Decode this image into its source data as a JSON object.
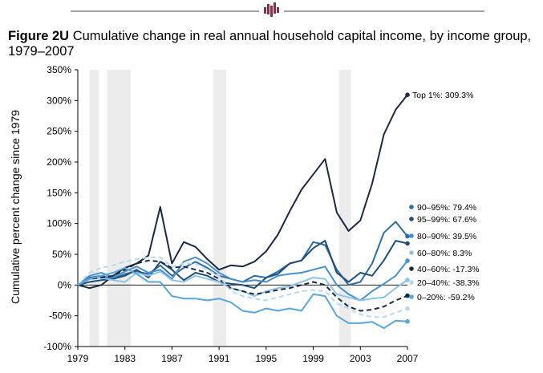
{
  "title": {
    "figure_label": "Figure 2U",
    "text": "Cumulative change in real annual  household capital income, by income group, 1979–2007"
  },
  "colors": {
    "top1": "#1b2a41",
    "p95_99": "#1f4e79",
    "p90_95": "#2e6da4",
    "p80_90": "#4a90c8",
    "p60_80": "#8ec3e8",
    "p40_60": "#1b2a41",
    "p20_40": "#b8d9f0",
    "p0_20": "#5aa6dc",
    "recession": "#ececec",
    "logo": "#8a2f4a"
  },
  "chart_data": {
    "type": "line",
    "ylabel": "Cumulative percent change since 1979",
    "xlabel": "",
    "xlim": [
      1979,
      2007
    ],
    "ylim": [
      -100,
      350
    ],
    "x_ticks": [
      "1979",
      "1983",
      "1987",
      "1991",
      "1995",
      "1999",
      "2003",
      "2007"
    ],
    "y_ticks": [
      "-100%",
      "-50%",
      "0%",
      "50%",
      "100%",
      "150%",
      "200%",
      "250%",
      "300%",
      "350%"
    ],
    "recession_shading": [
      [
        1980,
        1980.8
      ],
      [
        1981.5,
        1983.5
      ],
      [
        1990.5,
        1991.6
      ],
      [
        2001.2,
        2002.2
      ]
    ],
    "x": [
      1979,
      1980,
      1981,
      1982,
      1983,
      1984,
      1985,
      1986,
      1987,
      1988,
      1989,
      1990,
      1991,
      1992,
      1993,
      1994,
      1995,
      1996,
      1997,
      1998,
      1999,
      2000,
      2001,
      2002,
      2003,
      2004,
      2005,
      2006,
      2007
    ],
    "series": [
      {
        "label": "Top 1%: 309.3%",
        "color_key": "top1",
        "dashed": false,
        "values": [
          0,
          -5,
          0,
          15,
          28,
          35,
          48,
          127,
          35,
          70,
          62,
          42,
          25,
          32,
          30,
          38,
          55,
          82,
          120,
          155,
          180,
          205,
          118,
          88,
          105,
          165,
          245,
          285,
          309.3
        ]
      },
      {
        "label": "90–95%: 79.4%",
        "color_key": "p90_95",
        "dashed": false,
        "values": [
          0,
          12,
          15,
          10,
          18,
          22,
          18,
          32,
          15,
          28,
          38,
          28,
          15,
          10,
          5,
          15,
          12,
          22,
          35,
          40,
          70,
          65,
          25,
          0,
          5,
          35,
          85,
          103,
          79.4
        ]
      },
      {
        "label": "95–99%: 67.6%",
        "color_key": "p95_99",
        "dashed": false,
        "values": [
          0,
          5,
          8,
          10,
          15,
          25,
          12,
          38,
          25,
          8,
          20,
          15,
          5,
          2,
          0,
          -5,
          12,
          18,
          35,
          40,
          60,
          72,
          20,
          5,
          20,
          15,
          40,
          72,
          67.6
        ]
      },
      {
        "label": "80–90%: 39.5%",
        "color_key": "p80_90",
        "dashed": false,
        "values": [
          0,
          15,
          20,
          12,
          22,
          30,
          20,
          25,
          10,
          38,
          45,
          35,
          20,
          10,
          5,
          8,
          5,
          15,
          18,
          20,
          25,
          30,
          0,
          -15,
          -25,
          -10,
          2,
          15,
          39.5
        ]
      },
      {
        "label": "60–80%: 8.3%",
        "color_key": "p60_80",
        "dashed": false,
        "values": [
          0,
          10,
          12,
          8,
          5,
          20,
          15,
          22,
          8,
          5,
          15,
          10,
          5,
          -5,
          -10,
          -18,
          -10,
          -5,
          -2,
          5,
          12,
          10,
          -15,
          -20,
          -25,
          -22,
          -20,
          -5,
          8.3
        ]
      },
      {
        "label": "40–60%: -17.3%",
        "color_key": "p40_60",
        "dashed": true,
        "values": [
          0,
          10,
          12,
          15,
          25,
          35,
          40,
          38,
          28,
          30,
          25,
          20,
          10,
          -5,
          -10,
          -15,
          -12,
          -8,
          -5,
          0,
          5,
          0,
          -20,
          -35,
          -42,
          -40,
          -35,
          -25,
          -17.3
        ]
      },
      {
        "label": "20–40%: -38.3%",
        "color_key": "p20_40",
        "dashed": true,
        "values": [
          0,
          20,
          28,
          32,
          38,
          42,
          45,
          45,
          30,
          35,
          35,
          25,
          15,
          -10,
          -18,
          -22,
          -25,
          -20,
          -15,
          -10,
          -8,
          -10,
          -30,
          -38,
          -48,
          -52,
          -52,
          -45,
          -38.3
        ]
      },
      {
        "label": "0–20%: -59.2%",
        "color_key": "p0_20",
        "dashed": false,
        "values": [
          0,
          10,
          15,
          20,
          28,
          18,
          5,
          5,
          -18,
          -22,
          -22,
          -25,
          -22,
          -28,
          -42,
          -45,
          -38,
          -42,
          -38,
          -42,
          -15,
          -18,
          -50,
          -62,
          -62,
          -60,
          -70,
          -58,
          -59.2
        ]
      }
    ]
  }
}
